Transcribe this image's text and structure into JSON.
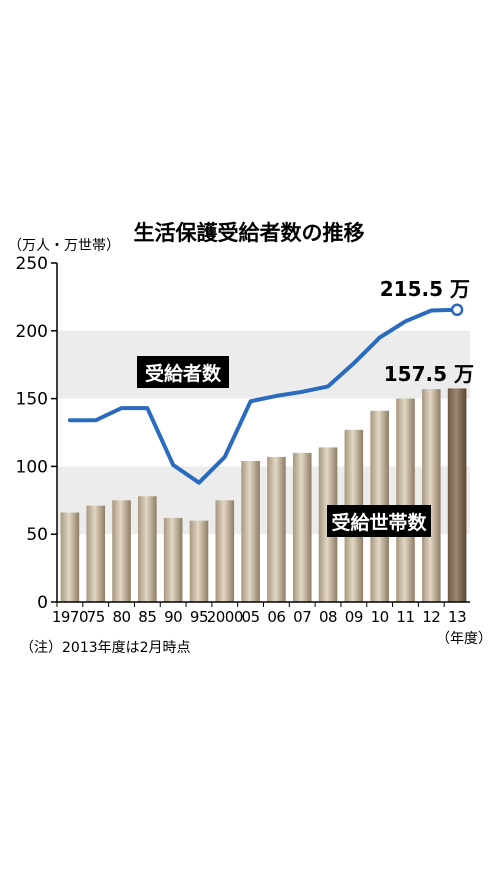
{
  "chart_data": {
    "type": "bar",
    "title": "生活保護受給者数の推移",
    "unit_label": "（万人・万世帯）",
    "xlabel_unit": "（年度）",
    "note": "（注）2013年度は2月時点",
    "ylim": [
      0,
      250
    ],
    "yticks": [
      0,
      50,
      100,
      150,
      200,
      250
    ],
    "grid": "alternating bands",
    "categories": [
      "1970",
      "75",
      "80",
      "85",
      "90",
      "95",
      "2000",
      "05",
      "06",
      "07",
      "08",
      "09",
      "10",
      "11",
      "12",
      "13"
    ],
    "series": [
      {
        "name": "受給者数",
        "type": "line",
        "color": "#2a6bbf",
        "values": [
          134,
          134,
          143,
          143,
          101,
          88,
          107,
          148,
          152,
          155,
          159,
          176,
          195,
          207,
          215,
          215.5
        ]
      },
      {
        "name": "受給世帯数",
        "type": "bar",
        "color": "#b8a890",
        "values": [
          66,
          71,
          75,
          78,
          62,
          60,
          75,
          104,
          107,
          110,
          114,
          127,
          141,
          150,
          157,
          157.5
        ]
      }
    ],
    "callouts": [
      {
        "text": "215.5 万",
        "series": "受給者数"
      },
      {
        "text": "157.5 万",
        "series": "受給世帯数"
      }
    ],
    "series_labels": [
      {
        "text": "受給者数"
      },
      {
        "text": "受給世帯数"
      }
    ]
  }
}
